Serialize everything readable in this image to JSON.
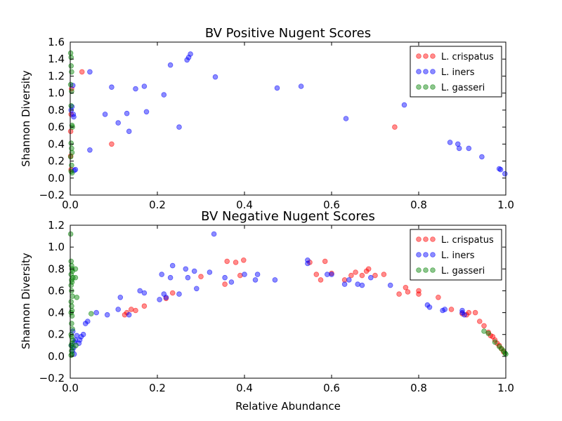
{
  "chart_data": [
    {
      "type": "scatter",
      "title": "BV Positive Nugent Scores",
      "xlabel": "",
      "ylabel": "Shannon Diversity",
      "xlim": [
        0.0,
        1.0
      ],
      "ylim": [
        -0.2,
        1.6
      ],
      "xticks": [
        "0.0",
        "0.2",
        "0.4",
        "0.6",
        "0.8",
        "1.0"
      ],
      "yticks": [
        "−0.2",
        "0.0",
        "0.2",
        "0.4",
        "0.6",
        "0.8",
        "1.0",
        "1.2",
        "1.4",
        "1.6"
      ],
      "xtick_values": [
        0.0,
        0.2,
        0.4,
        0.6,
        0.8,
        1.0
      ],
      "ytick_values": [
        -0.2,
        0.0,
        0.2,
        0.4,
        0.6,
        0.8,
        1.0,
        1.2,
        1.4,
        1.6
      ],
      "grid": false,
      "legend_position": "top-right",
      "series": [
        {
          "name": "L. crispatus",
          "color": "#ff0000",
          "points": [
            [
              0.027,
              1.25
            ],
            [
              0.095,
              0.4
            ],
            [
              0.745,
              0.6
            ],
            [
              0.001,
              0.55
            ],
            [
              0.002,
              0.75
            ],
            [
              0.003,
              1.05
            ],
            [
              0.001,
              0.26
            ],
            [
              0.002,
              0.1
            ]
          ]
        },
        {
          "name": "L. iners",
          "color": "#0000ff",
          "points": [
            [
              0.045,
              1.25
            ],
            [
              0.045,
              0.33
            ],
            [
              0.08,
              0.75
            ],
            [
              0.095,
              1.07
            ],
            [
              0.11,
              0.65
            ],
            [
              0.13,
              0.76
            ],
            [
              0.135,
              0.55
            ],
            [
              0.15,
              1.05
            ],
            [
              0.17,
              1.08
            ],
            [
              0.175,
              0.78
            ],
            [
              0.215,
              0.98
            ],
            [
              0.23,
              1.33
            ],
            [
              0.25,
              0.6
            ],
            [
              0.268,
              1.39
            ],
            [
              0.272,
              1.42
            ],
            [
              0.276,
              1.46
            ],
            [
              0.333,
              1.19
            ],
            [
              0.475,
              1.06
            ],
            [
              0.53,
              1.08
            ],
            [
              0.633,
              0.7
            ],
            [
              0.767,
              0.86
            ],
            [
              0.872,
              0.42
            ],
            [
              0.89,
              0.4
            ],
            [
              0.893,
              0.35
            ],
            [
              0.915,
              0.35
            ],
            [
              0.945,
              0.25
            ],
            [
              0.985,
              0.11
            ],
            [
              0.988,
              0.1
            ],
            [
              0.998,
              0.05
            ],
            [
              0.002,
              0.8
            ],
            [
              0.004,
              0.84
            ],
            [
              0.007,
              0.75
            ],
            [
              0.008,
              0.72
            ],
            [
              0.006,
              1.09
            ],
            [
              0.012,
              0.1
            ],
            [
              0.009,
              0.09
            ]
          ]
        },
        {
          "name": "L. gasseri",
          "color": "#008000",
          "points": [
            [
              0.001,
              1.47
            ],
            [
              0.002,
              1.42
            ],
            [
              0.002,
              1.32
            ],
            [
              0.003,
              1.25
            ],
            [
              0.001,
              1.1
            ],
            [
              0.003,
              1.02
            ],
            [
              0.002,
              0.85
            ],
            [
              0.004,
              0.62
            ],
            [
              0.005,
              0.6
            ],
            [
              0.002,
              0.41
            ],
            [
              0.003,
              0.35
            ],
            [
              0.004,
              0.3
            ],
            [
              0.001,
              0.25
            ],
            [
              0.003,
              0.15
            ],
            [
              0.002,
              0.08
            ],
            [
              0.004,
              0.06
            ]
          ]
        }
      ]
    },
    {
      "type": "scatter",
      "title": "BV Negative Nugent Scores",
      "xlabel": "Relative Abundance",
      "ylabel": "Shannon Diversity",
      "xlim": [
        0.0,
        1.0
      ],
      "ylim": [
        -0.2,
        1.2
      ],
      "xticks": [
        "0.0",
        "0.2",
        "0.4",
        "0.6",
        "0.8",
        "1.0"
      ],
      "yticks": [
        "−0.2",
        "0.0",
        "0.2",
        "0.4",
        "0.6",
        "0.8",
        "1.0",
        "1.2"
      ],
      "xtick_values": [
        0.0,
        0.2,
        0.4,
        0.6,
        0.8,
        1.0
      ],
      "ytick_values": [
        -0.2,
        0.0,
        0.2,
        0.4,
        0.6,
        0.8,
        1.0,
        1.2
      ],
      "grid": false,
      "legend_position": "top-right",
      "series": [
        {
          "name": "L. crispatus",
          "color": "#ff0000",
          "points": [
            [
              0.125,
              0.38
            ],
            [
              0.13,
              0.4
            ],
            [
              0.14,
              0.43
            ],
            [
              0.15,
              0.42
            ],
            [
              0.17,
              0.46
            ],
            [
              0.22,
              0.53
            ],
            [
              0.235,
              0.58
            ],
            [
              0.3,
              0.73
            ],
            [
              0.355,
              0.66
            ],
            [
              0.36,
              0.87
            ],
            [
              0.38,
              0.86
            ],
            [
              0.39,
              0.74
            ],
            [
              0.398,
              0.88
            ],
            [
              0.55,
              0.86
            ],
            [
              0.565,
              0.75
            ],
            [
              0.575,
              0.7
            ],
            [
              0.585,
              0.87
            ],
            [
              0.6,
              0.76
            ],
            [
              0.63,
              0.7
            ],
            [
              0.645,
              0.74
            ],
            [
              0.655,
              0.77
            ],
            [
              0.67,
              0.74
            ],
            [
              0.68,
              0.78
            ],
            [
              0.685,
              0.8
            ],
            [
              0.7,
              0.74
            ],
            [
              0.72,
              0.75
            ],
            [
              0.755,
              0.57
            ],
            [
              0.77,
              0.63
            ],
            [
              0.775,
              0.59
            ],
            [
              0.8,
              0.57
            ],
            [
              0.8,
              0.6
            ],
            [
              0.845,
              0.54
            ],
            [
              0.875,
              0.43
            ],
            [
              0.9,
              0.39
            ],
            [
              0.91,
              0.38
            ],
            [
              0.915,
              0.4
            ],
            [
              0.93,
              0.4
            ],
            [
              0.94,
              0.32
            ],
            [
              0.95,
              0.28
            ],
            [
              0.96,
              0.22
            ],
            [
              0.965,
              0.19
            ],
            [
              0.97,
              0.18
            ],
            [
              0.975,
              0.15
            ],
            [
              0.98,
              0.12
            ],
            [
              0.985,
              0.1
            ],
            [
              0.99,
              0.07
            ],
            [
              0.995,
              0.04
            ]
          ]
        },
        {
          "name": "L. iners",
          "color": "#0000ff",
          "points": [
            [
              0.02,
              0.12
            ],
            [
              0.022,
              0.15
            ],
            [
              0.025,
              0.18
            ],
            [
              0.03,
              0.2
            ],
            [
              0.035,
              0.3
            ],
            [
              0.04,
              0.32
            ],
            [
              0.06,
              0.4
            ],
            [
              0.085,
              0.38
            ],
            [
              0.11,
              0.43
            ],
            [
              0.115,
              0.54
            ],
            [
              0.135,
              0.38
            ],
            [
              0.16,
              0.6
            ],
            [
              0.17,
              0.58
            ],
            [
              0.205,
              0.52
            ],
            [
              0.21,
              0.75
            ],
            [
              0.215,
              0.57
            ],
            [
              0.22,
              0.54
            ],
            [
              0.23,
              0.72
            ],
            [
              0.235,
              0.83
            ],
            [
              0.25,
              0.57
            ],
            [
              0.265,
              0.8
            ],
            [
              0.27,
              0.72
            ],
            [
              0.285,
              0.78
            ],
            [
              0.29,
              0.62
            ],
            [
              0.32,
              0.77
            ],
            [
              0.33,
              1.12
            ],
            [
              0.355,
              0.72
            ],
            [
              0.37,
              0.68
            ],
            [
              0.4,
              0.75
            ],
            [
              0.43,
              0.75
            ],
            [
              0.425,
              0.7
            ],
            [
              0.47,
              0.7
            ],
            [
              0.545,
              0.88
            ],
            [
              0.545,
              0.85
            ],
            [
              0.59,
              0.75
            ],
            [
              0.6,
              0.75
            ],
            [
              0.63,
              0.66
            ],
            [
              0.64,
              0.7
            ],
            [
              0.66,
              0.66
            ],
            [
              0.67,
              0.65
            ],
            [
              0.69,
              0.72
            ],
            [
              0.735,
              0.65
            ],
            [
              0.82,
              0.47
            ],
            [
              0.825,
              0.45
            ],
            [
              0.855,
              0.42
            ],
            [
              0.86,
              0.43
            ],
            [
              0.9,
              0.4
            ],
            [
              0.905,
              0.38
            ],
            [
              0.9,
              0.42
            ],
            [
              0.005,
              0.05
            ],
            [
              0.008,
              0.08
            ],
            [
              0.01,
              0.13
            ],
            [
              0.012,
              0.15
            ],
            [
              0.015,
              0.19
            ],
            [
              0.006,
              0.23
            ],
            [
              0.003,
              0.1
            ],
            [
              0.009,
              0.02
            ]
          ]
        },
        {
          "name": "L. gasseri",
          "color": "#008000",
          "points": [
            [
              0.001,
              1.12
            ],
            [
              0.002,
              0.87
            ],
            [
              0.003,
              0.83
            ],
            [
              0.004,
              0.8
            ],
            [
              0.005,
              0.78
            ],
            [
              0.002,
              0.75
            ],
            [
              0.006,
              0.72
            ],
            [
              0.003,
              0.7
            ],
            [
              0.004,
              0.68
            ],
            [
              0.002,
              0.65
            ],
            [
              0.003,
              0.6
            ],
            [
              0.005,
              0.55
            ],
            [
              0.002,
              0.5
            ],
            [
              0.003,
              0.46
            ],
            [
              0.004,
              0.42
            ],
            [
              0.002,
              0.4
            ],
            [
              0.004,
              0.37
            ],
            [
              0.003,
              0.3
            ],
            [
              0.005,
              0.25
            ],
            [
              0.002,
              0.2
            ],
            [
              0.003,
              0.18
            ],
            [
              0.006,
              0.15
            ],
            [
              0.004,
              0.12
            ],
            [
              0.002,
              0.1
            ],
            [
              0.005,
              0.08
            ],
            [
              0.003,
              0.05
            ],
            [
              0.004,
              0.02
            ],
            [
              0.002,
              0.01
            ],
            [
              0.012,
              0.8
            ],
            [
              0.012,
              0.72
            ],
            [
              0.015,
              0.54
            ],
            [
              0.048,
              0.39
            ],
            [
              0.013,
              0.1
            ],
            [
              0.95,
              0.23
            ],
            [
              0.96,
              0.21
            ],
            [
              0.975,
              0.13
            ],
            [
              0.985,
              0.09
            ],
            [
              0.99,
              0.07
            ],
            [
              0.995,
              0.05
            ],
            [
              0.998,
              0.03
            ],
            [
              1.0,
              0.02
            ]
          ]
        }
      ]
    }
  ]
}
